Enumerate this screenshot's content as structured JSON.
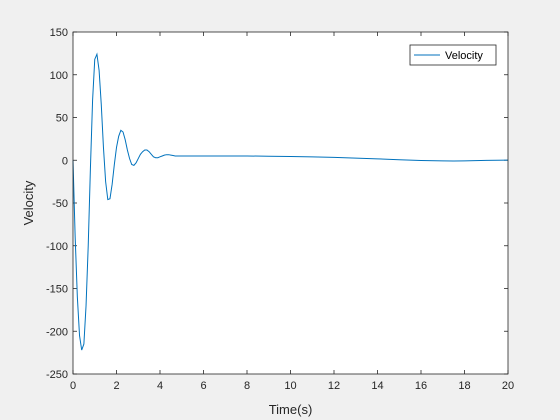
{
  "chart_data": {
    "type": "line",
    "title": "",
    "xlabel": "Time(s)",
    "ylabel": "Velocity",
    "xlim": [
      0,
      20
    ],
    "ylim": [
      -250,
      150
    ],
    "xticks": [
      0,
      2,
      4,
      6,
      8,
      10,
      12,
      14,
      16,
      18,
      20
    ],
    "yticks": [
      -250,
      -200,
      -150,
      -100,
      -50,
      0,
      50,
      100,
      150
    ],
    "grid": false,
    "legend_position": "top-right",
    "series": [
      {
        "name": "Velocity",
        "color": "#0072bd",
        "x": [
          0,
          0.1,
          0.2,
          0.3,
          0.4,
          0.5,
          0.6,
          0.7,
          0.8,
          0.9,
          1.0,
          1.1,
          1.2,
          1.3,
          1.4,
          1.5,
          1.6,
          1.7,
          1.8,
          1.9,
          2.0,
          2.1,
          2.2,
          2.3,
          2.4,
          2.5,
          2.6,
          2.7,
          2.8,
          2.9,
          3.0,
          3.1,
          3.2,
          3.3,
          3.4,
          3.5,
          3.6,
          3.7,
          3.8,
          3.9,
          4.0,
          4.1,
          4.2,
          4.3,
          4.4,
          4.5,
          4.6,
          4.7,
          4.8,
          4.9,
          5.0,
          5.2,
          5.4,
          5.6,
          5.8,
          6.0,
          6.3,
          6.6,
          7.0,
          7.5,
          8.0,
          9.0,
          10.0,
          11.0,
          12.0,
          13.0,
          14.0,
          15.0,
          16.0,
          17.0,
          17.5,
          18.0,
          19.0,
          20.0
        ],
        "values": [
          0,
          -90,
          -160,
          -205,
          -222,
          -215,
          -170,
          -100,
          -10,
          70,
          118,
          124,
          105,
          65,
          15,
          -25,
          -46,
          -45,
          -28,
          -5,
          15,
          28,
          35,
          33,
          24,
          12,
          2,
          -5,
          -6,
          -3,
          2,
          7,
          10,
          12,
          12,
          10,
          7,
          4,
          3,
          3,
          4,
          5,
          6,
          6.5,
          6.5,
          6,
          5.5,
          5,
          5,
          5,
          5,
          5,
          5,
          5,
          5,
          5,
          5,
          5,
          5,
          5,
          5,
          4.7,
          4.4,
          4,
          3.3,
          2.5,
          1.6,
          0.6,
          -0.3,
          -0.8,
          -0.9,
          -0.7,
          -0.2,
          0.2
        ]
      }
    ]
  }
}
